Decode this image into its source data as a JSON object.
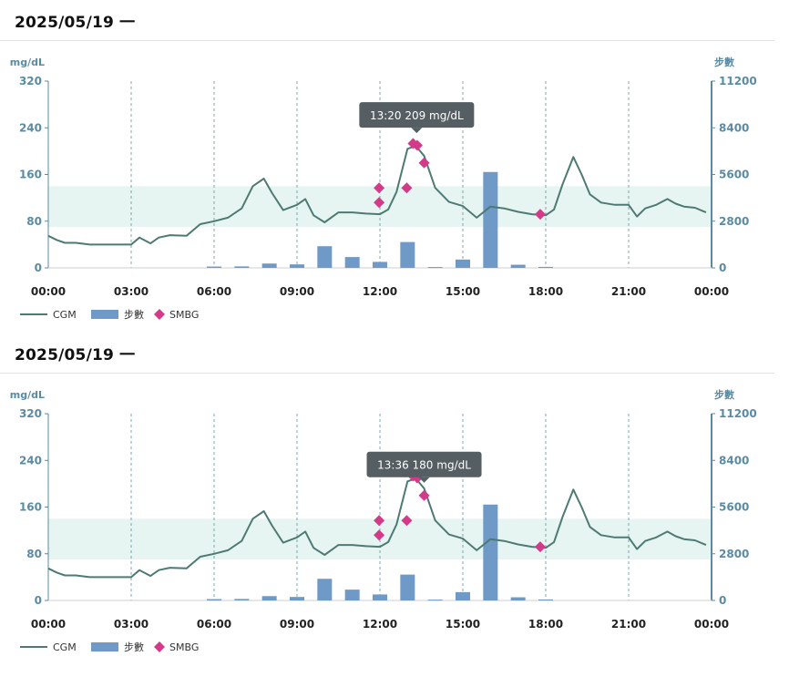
{
  "panels": [
    {
      "date": "2025/05/19 一",
      "tooltip": "13:20 209 mg/dL",
      "chart_data": {
        "type": "line",
        "left_axis_unit": "mg/dL",
        "right_axis_unit": "步數",
        "x_ticks": [
          "00:00",
          "03:00",
          "06:00",
          "09:00",
          "12:00",
          "15:00",
          "18:00",
          "21:00",
          "00:00"
        ],
        "ylim": [
          0,
          320
        ],
        "y_ticks": [
          "0",
          "80",
          "160",
          "240",
          "320"
        ],
        "y2lim": [
          0,
          11200
        ],
        "y2_ticks": [
          "0",
          "2800",
          "5600",
          "8400",
          "11200"
        ],
        "target_range": [
          70,
          140
        ],
        "legend": [
          "CGM",
          "步數",
          "SMBG"
        ],
        "colors": {
          "cgm": "#4e7a74",
          "steps": "#6f99c6",
          "smbg": "#d43a8a",
          "target": "#e6f5f1",
          "axis": "#5b8ba3",
          "grid": "#7fa8a8"
        },
        "cgm": {
          "x_hours": [
            0,
            0.3,
            0.6,
            1.0,
            1.5,
            2.0,
            2.5,
            3.0,
            3.3,
            3.7,
            4.0,
            4.4,
            5.0,
            5.5,
            6.0,
            6.5,
            7.0,
            7.4,
            7.8,
            8.1,
            8.5,
            9.0,
            9.3,
            9.6,
            10.0,
            10.5,
            11.0,
            11.5,
            12.0,
            12.3,
            12.6,
            13.0,
            13.3,
            13.6,
            14.0,
            14.5,
            15.0,
            15.5,
            16.0,
            16.5,
            17.0,
            17.5,
            18.0,
            18.3,
            18.6,
            19.0,
            19.3,
            19.6,
            20.0,
            20.5,
            21.0,
            21.3,
            21.6,
            22.0,
            22.4,
            22.7,
            23.0,
            23.4,
            23.8
          ],
          "y": [
            55,
            48,
            43,
            43,
            40,
            40,
            40,
            40,
            52,
            42,
            52,
            56,
            55,
            75,
            80,
            86,
            102,
            140,
            153,
            128,
            99,
            108,
            118,
            90,
            78,
            95,
            95,
            93,
            92,
            100,
            130,
            204,
            209,
            192,
            137,
            113,
            106,
            86,
            105,
            102,
            96,
            92,
            90,
            100,
            142,
            190,
            160,
            126,
            112,
            108,
            108,
            88,
            102,
            108,
            118,
            110,
            105,
            103,
            95
          ]
        },
        "steps": {
          "x_hours": [
            6.0,
            7.0,
            8.0,
            9.0,
            10.0,
            11.0,
            12.0,
            13.0,
            14.0,
            15.0,
            16.0,
            17.0,
            18.0
          ],
          "values": [
            80,
            90,
            260,
            210,
            1300,
            650,
            360,
            1550,
            50,
            500,
            5750,
            190,
            60
          ]
        },
        "smbg": {
          "x_hours": [
            11.97,
            11.97,
            12.97,
            13.2,
            13.35,
            13.6,
            17.8
          ],
          "y": [
            137,
            112,
            137,
            213,
            210,
            180,
            92
          ]
        }
      }
    },
    {
      "date": "2025/05/19 一",
      "tooltip": "13:36 180 mg/dL",
      "chart_data": {
        "type": "line",
        "left_axis_unit": "mg/dL",
        "right_axis_unit": "步數",
        "x_ticks": [
          "00:00",
          "03:00",
          "06:00",
          "09:00",
          "12:00",
          "15:00",
          "18:00",
          "21:00",
          "00:00"
        ],
        "ylim": [
          0,
          320
        ],
        "y_ticks": [
          "0",
          "80",
          "160",
          "240",
          "320"
        ],
        "y2lim": [
          0,
          11200
        ],
        "y2_ticks": [
          "0",
          "2800",
          "5600",
          "8400",
          "11200"
        ],
        "target_range": [
          70,
          140
        ],
        "legend": [
          "CGM",
          "步數",
          "SMBG"
        ],
        "colors": {
          "cgm": "#4e7a74",
          "steps": "#6f99c6",
          "smbg": "#d43a8a",
          "target": "#e6f5f1",
          "axis": "#5b8ba3",
          "grid": "#7fa8a8"
        },
        "cgm": {
          "x_hours": [
            0,
            0.3,
            0.6,
            1.0,
            1.5,
            2.0,
            2.5,
            3.0,
            3.3,
            3.7,
            4.0,
            4.4,
            5.0,
            5.5,
            6.0,
            6.5,
            7.0,
            7.4,
            7.8,
            8.1,
            8.5,
            9.0,
            9.3,
            9.6,
            10.0,
            10.5,
            11.0,
            11.5,
            12.0,
            12.3,
            12.6,
            13.0,
            13.3,
            13.6,
            14.0,
            14.5,
            15.0,
            15.5,
            16.0,
            16.5,
            17.0,
            17.5,
            18.0,
            18.3,
            18.6,
            19.0,
            19.3,
            19.6,
            20.0,
            20.5,
            21.0,
            21.3,
            21.6,
            22.0,
            22.4,
            22.7,
            23.0,
            23.4,
            23.8
          ],
          "y": [
            55,
            48,
            43,
            43,
            40,
            40,
            40,
            40,
            52,
            42,
            52,
            56,
            55,
            75,
            80,
            86,
            102,
            140,
            153,
            128,
            99,
            108,
            118,
            90,
            78,
            95,
            95,
            93,
            92,
            100,
            130,
            204,
            209,
            192,
            137,
            113,
            106,
            86,
            105,
            102,
            96,
            92,
            90,
            100,
            142,
            190,
            160,
            126,
            112,
            108,
            108,
            88,
            102,
            108,
            118,
            110,
            105,
            103,
            95
          ]
        },
        "steps": {
          "x_hours": [
            6.0,
            7.0,
            8.0,
            9.0,
            10.0,
            11.0,
            12.0,
            13.0,
            14.0,
            15.0,
            16.0,
            17.0,
            18.0
          ],
          "values": [
            80,
            90,
            260,
            210,
            1300,
            650,
            360,
            1550,
            50,
            500,
            5750,
            190,
            60
          ]
        },
        "smbg": {
          "x_hours": [
            11.97,
            11.97,
            12.97,
            13.2,
            13.35,
            13.6,
            17.8
          ],
          "y": [
            137,
            112,
            137,
            213,
            210,
            180,
            92
          ]
        }
      }
    }
  ]
}
